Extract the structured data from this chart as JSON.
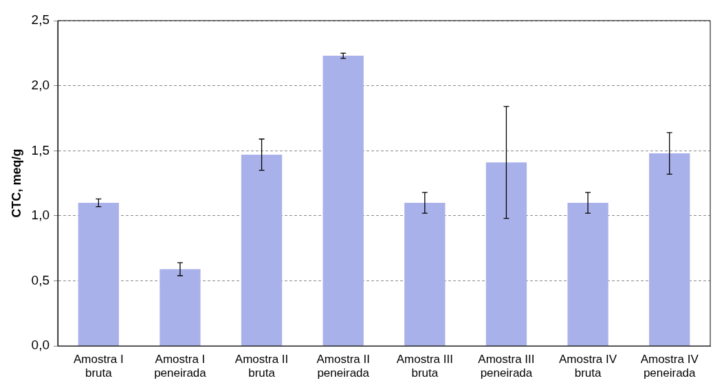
{
  "chart_data": {
    "type": "bar",
    "ylabel": "CTC, meq/g",
    "categories": [
      "Amostra I bruta",
      "Amostra I peneirada",
      "Amostra II bruta",
      "Amostra II peneirada",
      "Amostra III bruta",
      "Amostra III peneirada",
      "Amostra IV bruta",
      "Amostra IV peneirada"
    ],
    "values": [
      1.1,
      0.59,
      1.47,
      2.23,
      1.1,
      1.41,
      1.1,
      1.48
    ],
    "errors": [
      0.03,
      0.05,
      0.12,
      0.02,
      0.08,
      0.43,
      0.08,
      0.16
    ],
    "color": "#a9b1ea",
    "ylim": [
      0,
      2.5
    ],
    "yticks": [
      {
        "value": 0,
        "label": "0,0"
      },
      {
        "value": 0.5,
        "label": "0,5"
      },
      {
        "value": 1,
        "label": "1,0"
      },
      {
        "value": 1.5,
        "label": "1,5"
      },
      {
        "value": 2,
        "label": "2,0"
      },
      {
        "value": 2.5,
        "label": "2,5"
      }
    ],
    "grid": "y",
    "legend": false
  }
}
